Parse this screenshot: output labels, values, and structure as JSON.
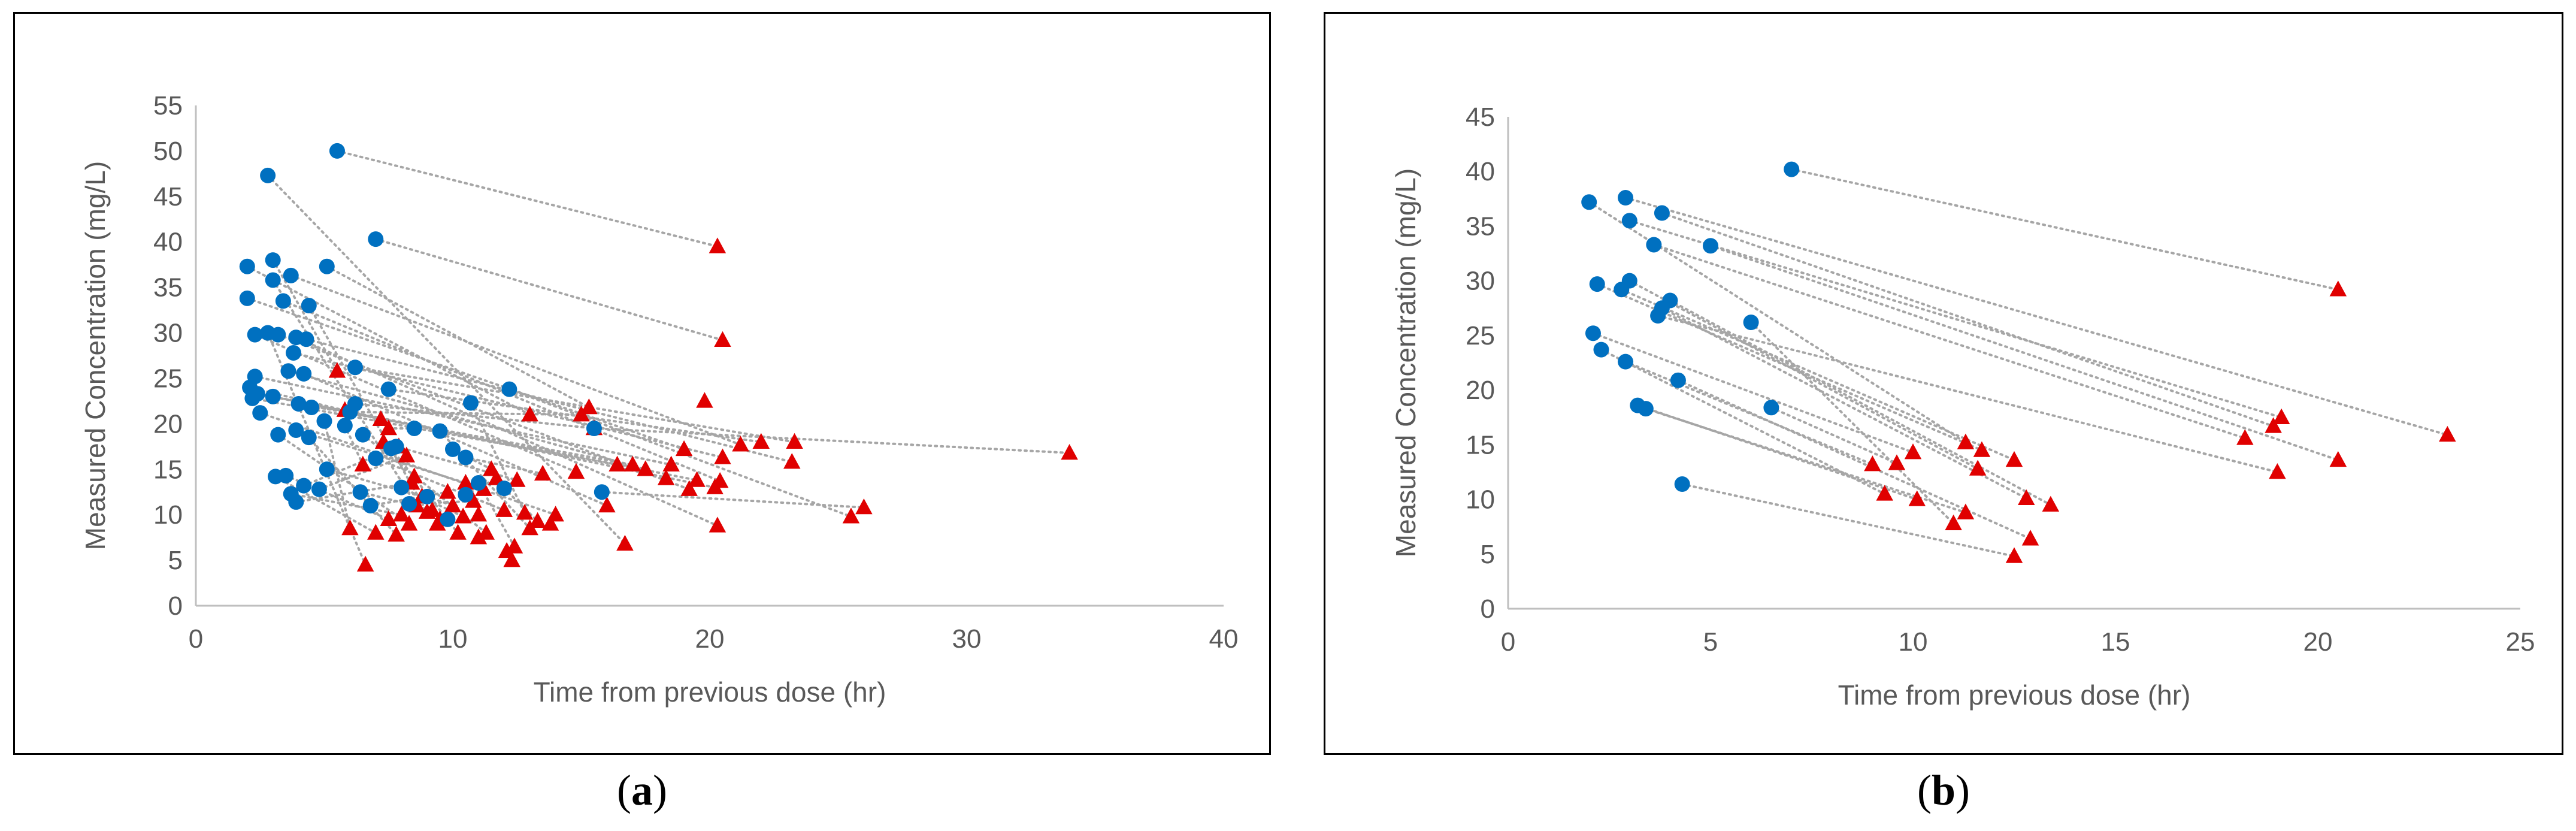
{
  "figure": {
    "panel_a_caption": {
      "open": "(",
      "letter": "a",
      "close": ")"
    },
    "panel_b_caption": {
      "open": "(",
      "letter": "b",
      "close": ")"
    }
  },
  "colors": {
    "first_sample": "#0070C0",
    "second_sample": "#E00000",
    "connector": "#A6A6A6",
    "axis": "#595959"
  },
  "chart_data": [
    {
      "panel": "a",
      "type": "scatter",
      "xlabel": "Time from previous dose (hr)",
      "ylabel": "Measured Concentration (mg/L)",
      "xlim": [
        0,
        40
      ],
      "ylim": [
        0,
        55
      ],
      "xticks": [
        0,
        10,
        20,
        30,
        40
      ],
      "yticks": [
        0,
        5,
        10,
        15,
        20,
        25,
        30,
        35,
        40,
        45,
        50,
        55
      ],
      "grid": false,
      "legend": "none",
      "series": [
        {
          "marker": "circle",
          "color": "#0070C0",
          "x": [
            5.5,
            7.0,
            2.8,
            2.0,
            3.0,
            3.7,
            2.3,
            3.4,
            5.1,
            3.9,
            2.0,
            2.3,
            2.8,
            3.2,
            3.8,
            4.3,
            3.6,
            2.4,
            2.2,
            3.0,
            4.0,
            4.2,
            6.2,
            7.5,
            2.1,
            2.5,
            3.2,
            4.5,
            5.0,
            3.9,
            4.4,
            3.1,
            3.5,
            3.7,
            5.8,
            6.0,
            6.2,
            6.5,
            7.0,
            7.8,
            8.5,
            9.5,
            10.0,
            10.5,
            4.2,
            4.8,
            3.9,
            5.1,
            6.4,
            6.8,
            8.0,
            8.3,
            10.5,
            11.0,
            12.0,
            15.5,
            15.8,
            12.2,
            10.7,
            3.0,
            4.4,
            9.0,
            9.8,
            7.6
          ],
          "y": [
            50.0,
            40.3,
            47.3,
            37.3,
            38.0,
            36.3,
            29.8,
            33.5,
            37.3,
            29.5,
            33.8,
            25.2,
            30.0,
            29.8,
            27.8,
            29.3,
            25.8,
            23.3,
            22.8,
            23.0,
            22.2,
            25.5,
            26.2,
            23.8,
            24.0,
            21.2,
            18.8,
            21.8,
            20.3,
            19.3,
            18.5,
            14.2,
            14.3,
            12.3,
            19.8,
            21.3,
            22.2,
            18.8,
            16.2,
            17.5,
            19.5,
            19.2,
            17.2,
            16.3,
            13.2,
            12.8,
            11.4,
            15.0,
            12.5,
            11.0,
            13.0,
            11.2,
            12.2,
            13.5,
            12.9,
            19.5,
            12.5,
            23.8,
            22.3,
            35.8,
            33.0,
            12.0,
            9.5,
            17.3
          ]
        },
        {
          "marker": "triangle",
          "color": "#E00000",
          "x": [
            20.3,
            20.5,
            34.0,
            26.0,
            25.5,
            23.3,
            22.0,
            19.5,
            16.4,
            14.8,
            23.2,
            21.2,
            20.3,
            18.5,
            19.0,
            19.2,
            20.4,
            20.5,
            15.3,
            13.0,
            16.7,
            5.5,
            6.6,
            7.0,
            7.5,
            7.8,
            8.0,
            8.3,
            8.6,
            9.0,
            9.5,
            10.0,
            10.2,
            10.5,
            11.0,
            11.3,
            11.5,
            12.0,
            12.3,
            12.5,
            13.0,
            13.5,
            14.0,
            5.8,
            6.0,
            6.5,
            7.2,
            7.5,
            7.9,
            8.2,
            8.4,
            8.8,
            9.2,
            9.8,
            10.4,
            10.8,
            11.2,
            11.7,
            12.4,
            12.8,
            13.3,
            13.8,
            15.0,
            15.5,
            16.0,
            17.0,
            17.5,
            18.3,
            19.8,
            20.2,
            9.4,
            11.0,
            12.1,
            7.3,
            8.5
          ],
          "y": [
            39.5,
            29.2,
            16.8,
            10.8,
            9.8,
            18.0,
            18.0,
            13.8,
            15.5,
            14.7,
            15.8,
            17.7,
            8.8,
            15.5,
            17.2,
            12.8,
            13.7,
            16.3,
            21.8,
            21.0,
            6.8,
            25.8,
            4.5,
            8.0,
            9.5,
            7.8,
            10.0,
            9.0,
            11.0,
            10.3,
            9.5,
            11.0,
            8.0,
            13.5,
            10.0,
            8.0,
            15.0,
            10.5,
            5.0,
            13.8,
            8.5,
            14.5,
            10.0,
            21.5,
            8.5,
            15.5,
            20.5,
            19.5,
            17.5,
            16.5,
            13.5,
            12.0,
            10.5,
            12.5,
            9.8,
            11.5,
            12.8,
            14.0,
            6.5,
            10.2,
            9.3,
            9.0,
            21.0,
            19.5,
            11.0,
            15.5,
            15.0,
            14.0,
            22.5,
            13.0,
            9.0,
            7.5,
            6.0,
            18.0,
            14.2
          ]
        }
      ],
      "pairs": [
        [
          0,
          0
        ],
        [
          1,
          1
        ],
        [
          2,
          20
        ],
        [
          3,
          19
        ],
        [
          4,
          21
        ],
        [
          5,
          11
        ],
        [
          6,
          9
        ],
        [
          7,
          16
        ],
        [
          8,
          18
        ],
        [
          9,
          12
        ],
        [
          10,
          14
        ],
        [
          11,
          13
        ],
        [
          12,
          22
        ],
        [
          13,
          15
        ],
        [
          14,
          17
        ],
        [
          15,
          10
        ],
        [
          16,
          66
        ],
        [
          17,
          7
        ],
        [
          18,
          8
        ],
        [
          19,
          69
        ],
        [
          20,
          65
        ],
        [
          21,
          64
        ],
        [
          22,
          5
        ],
        [
          23,
          6
        ],
        [
          24,
          46
        ],
        [
          25,
          42
        ],
        [
          26,
          27
        ],
        [
          27,
          43
        ],
        [
          28,
          44
        ],
        [
          29,
          33
        ],
        [
          30,
          25
        ],
        [
          31,
          23
        ],
        [
          32,
          24
        ],
        [
          33,
          26
        ],
        [
          34,
          45
        ],
        [
          35,
          62
        ],
        [
          36,
          63
        ],
        [
          37,
          35
        ],
        [
          38,
          37
        ],
        [
          39,
          39
        ],
        [
          40,
          47
        ],
        [
          41,
          40
        ],
        [
          42,
          36
        ],
        [
          43,
          41
        ],
        [
          44,
          48
        ],
        [
          45,
          49
        ],
        [
          46,
          50
        ],
        [
          47,
          51
        ],
        [
          48,
          52
        ],
        [
          49,
          53
        ],
        [
          50,
          54
        ],
        [
          51,
          55
        ],
        [
          52,
          57
        ],
        [
          53,
          58
        ],
        [
          54,
          60
        ],
        [
          55,
          2
        ],
        [
          56,
          3
        ],
        [
          57,
          4
        ],
        [
          58,
          59
        ],
        [
          59,
          28
        ],
        [
          60,
          29
        ],
        [
          61,
          31
        ],
        [
          62,
          30
        ],
        [
          63,
          32
        ]
      ]
    },
    {
      "panel": "b",
      "type": "scatter",
      "xlabel": "Time from previous dose (hr)",
      "ylabel": "Measured Concentration (mg/L)",
      "xlim": [
        0,
        25
      ],
      "ylim": [
        0,
        45
      ],
      "xticks": [
        0,
        5,
        10,
        15,
        20,
        25
      ],
      "yticks": [
        0,
        5,
        10,
        15,
        20,
        25,
        30,
        35,
        40,
        45
      ],
      "grid": false,
      "legend": "none",
      "series": [
        {
          "marker": "circle",
          "color": "#0070C0",
          "x": [
            7.0,
            2.0,
            2.9,
            3.0,
            3.8,
            3.6,
            5.0,
            2.2,
            2.8,
            3.0,
            4.0,
            3.8,
            3.7,
            6.0,
            2.1,
            2.3,
            2.9,
            4.2,
            3.2,
            3.4,
            6.5,
            4.3
          ],
          "y": [
            40.2,
            37.2,
            37.6,
            35.5,
            36.2,
            33.3,
            33.2,
            29.7,
            29.2,
            30.0,
            28.2,
            27.5,
            26.8,
            26.2,
            25.2,
            23.7,
            22.6,
            20.9,
            18.6,
            18.3,
            18.4,
            11.4
          ]
        },
        {
          "marker": "triangle",
          "color": "#E00000",
          "x": [
            20.5,
            23.2,
            19.1,
            18.9,
            18.2,
            20.5,
            19.0,
            11.3,
            11.7,
            12.5,
            11.6,
            10.0,
            9.0,
            9.6,
            13.4,
            12.8,
            9.3,
            10.1,
            11.3,
            11.0,
            12.9,
            12.5
          ],
          "y": [
            29.2,
            15.9,
            17.5,
            16.7,
            15.6,
            13.6,
            12.5,
            15.2,
            14.5,
            13.6,
            12.8,
            14.3,
            13.2,
            13.3,
            9.5,
            10.1,
            10.5,
            10.0,
            8.8,
            7.8,
            6.4,
            4.8
          ]
        }
      ],
      "pairs": [
        [
          0,
          0
        ],
        [
          1,
          7
        ],
        [
          2,
          1
        ],
        [
          3,
          2
        ],
        [
          4,
          3
        ],
        [
          5,
          4
        ],
        [
          6,
          5
        ],
        [
          7,
          8
        ],
        [
          8,
          9
        ],
        [
          9,
          10
        ],
        [
          10,
          14
        ],
        [
          11,
          15
        ],
        [
          12,
          6
        ],
        [
          13,
          19
        ],
        [
          14,
          11
        ],
        [
          15,
          16
        ],
        [
          16,
          12
        ],
        [
          17,
          20
        ],
        [
          18,
          17
        ],
        [
          19,
          18
        ],
        [
          20,
          13
        ],
        [
          21,
          21
        ]
      ]
    }
  ]
}
